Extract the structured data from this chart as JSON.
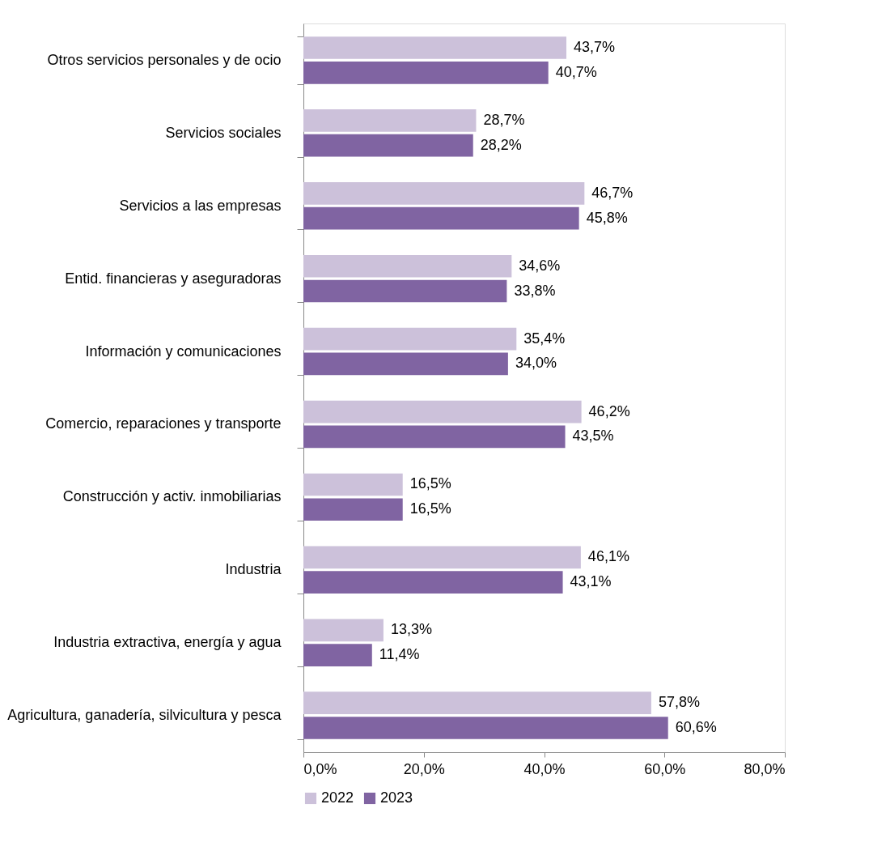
{
  "chart_data": {
    "type": "bar",
    "orientation": "horizontal",
    "categories": [
      "Otros servicios personales y de ocio",
      "Servicios sociales",
      "Servicios a las empresas",
      "Entid. financieras y aseguradoras",
      "Información y comunicaciones",
      "Comercio, reparaciones y transporte",
      "Construcción y activ. inmobiliarias",
      "Industria",
      "Industria extractiva, energía y agua",
      "Agricultura, ganadería, silvicultura y pesca"
    ],
    "series": [
      {
        "name": "2022",
        "color": "#ccc1da",
        "values": [
          43.7,
          28.7,
          46.7,
          34.6,
          35.4,
          46.2,
          16.5,
          46.1,
          13.3,
          57.8
        ],
        "value_labels": [
          "43,7%",
          "28,7%",
          "46,7%",
          "34,6%",
          "35,4%",
          "46,2%",
          "16,5%",
          "46,1%",
          "13,3%",
          "57,8%"
        ]
      },
      {
        "name": "2023",
        "color": "#8064a2",
        "values": [
          40.7,
          28.2,
          45.8,
          33.8,
          34.0,
          43.5,
          16.5,
          43.1,
          11.4,
          60.6
        ],
        "value_labels": [
          "40,7%",
          "28,2%",
          "45,8%",
          "33,8%",
          "34,0%",
          "43,5%",
          "16,5%",
          "43,1%",
          "11,4%",
          "60,6%"
        ]
      }
    ],
    "xlim": [
      0,
      80
    ],
    "xticks": [
      {
        "value": 0,
        "label": "0,0%"
      },
      {
        "value": 20,
        "label": "20,0%"
      },
      {
        "value": 40,
        "label": "40,0%"
      },
      {
        "value": 60,
        "label": "60,0%"
      },
      {
        "value": 80,
        "label": "80,0%"
      }
    ],
    "grid": false,
    "legend": "bottom"
  }
}
